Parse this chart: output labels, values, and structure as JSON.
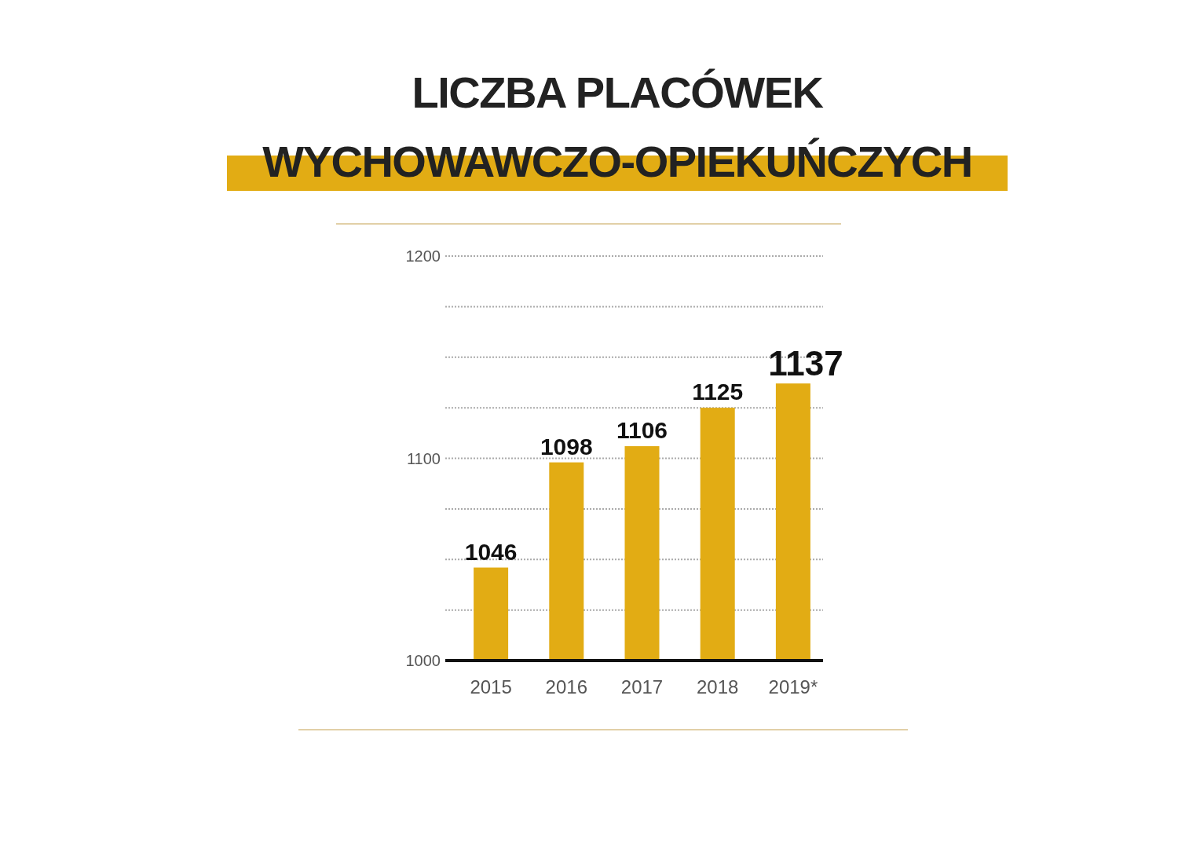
{
  "chart_data": {
    "type": "bar",
    "title": "LICZBA PLACÓWEK WYCHOWAWCZO-OPIEKUŃCZYCH",
    "categories": [
      "2015",
      "2016",
      "2017",
      "2018",
      "2019*"
    ],
    "values": [
      1046,
      1098,
      1106,
      1125,
      1137
    ],
    "color": "#e2ac14",
    "ylim": [
      1000,
      1200
    ],
    "yticks": [
      1000,
      {
        "value": 1025,
        "label": null
      },
      {
        "value": 1050,
        "label": null
      },
      {
        "value": 1075,
        "label": null
      },
      1100,
      {
        "value": 1125,
        "label": null
      },
      {
        "value": 1150,
        "label": null
      },
      {
        "value": 1175,
        "label": null
      },
      1200
    ],
    "grid": "y",
    "data_labels": true
  }
}
